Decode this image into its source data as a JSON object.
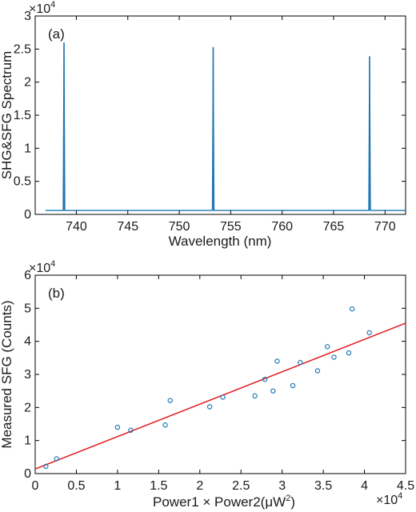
{
  "colors": {
    "spectrum": "#1f77b4",
    "points": "#1f77b4",
    "fit": "#e31a1c",
    "axis": "#000000"
  },
  "chart_data": [
    {
      "type": "line",
      "panel_label": "(a)",
      "xlabel": "Wavelength (nm)",
      "ylabel": "SHG&SFG Spectrum",
      "xlim": [
        736,
        772
      ],
      "ylim": [
        0,
        30000
      ],
      "x_ticks": [
        740,
        745,
        750,
        755,
        760,
        765,
        770
      ],
      "y_ticks": [
        0,
        0.5,
        1,
        1.5,
        2,
        2.5,
        3
      ],
      "y_exponent": "×10",
      "y_exponent_power": "4",
      "grid": false,
      "baseline": 600,
      "x_range": [
        737,
        772
      ],
      "peaks": [
        {
          "x": 738.8,
          "y": 26000
        },
        {
          "x": 753.3,
          "y": 25300
        },
        {
          "x": 768.5,
          "y": 23900
        }
      ]
    },
    {
      "type": "scatter",
      "panel_label": "(b)",
      "xlabel": "Power1 × Power2(μW",
      "xlabel_sup": "2",
      "xlabel_end": ")",
      "ylabel": "Measured SFG (Counts)",
      "xlim": [
        0,
        45000
      ],
      "ylim": [
        0,
        60000
      ],
      "x_ticks": [
        0,
        0.5,
        1,
        1.5,
        2,
        2.5,
        3,
        3.5,
        4,
        4.5
      ],
      "y_ticks": [
        0,
        1,
        2,
        3,
        4,
        5,
        6
      ],
      "x_exponent": "×10",
      "x_exponent_power": "4",
      "y_exponent": "×10",
      "y_exponent_power": "4",
      "grid": false,
      "points": [
        {
          "x": 1300,
          "y": 2200
        },
        {
          "x": 2600,
          "y": 4500
        },
        {
          "x": 10000,
          "y": 14000
        },
        {
          "x": 11600,
          "y": 13100
        },
        {
          "x": 15800,
          "y": 14700
        },
        {
          "x": 16400,
          "y": 22100
        },
        {
          "x": 21200,
          "y": 20200
        },
        {
          "x": 22800,
          "y": 23100
        },
        {
          "x": 26700,
          "y": 23500
        },
        {
          "x": 27900,
          "y": 28500
        },
        {
          "x": 28900,
          "y": 25000
        },
        {
          "x": 29400,
          "y": 34000
        },
        {
          "x": 31300,
          "y": 26600
        },
        {
          "x": 32200,
          "y": 33600
        },
        {
          "x": 34300,
          "y": 31100
        },
        {
          "x": 35500,
          "y": 38400
        },
        {
          "x": 36300,
          "y": 35200
        },
        {
          "x": 38100,
          "y": 36500
        },
        {
          "x": 38500,
          "y": 49800
        },
        {
          "x": 40600,
          "y": 42600
        }
      ],
      "fit_line": {
        "x": [
          0,
          45000
        ],
        "y": [
          1400,
          45500
        ]
      }
    }
  ]
}
